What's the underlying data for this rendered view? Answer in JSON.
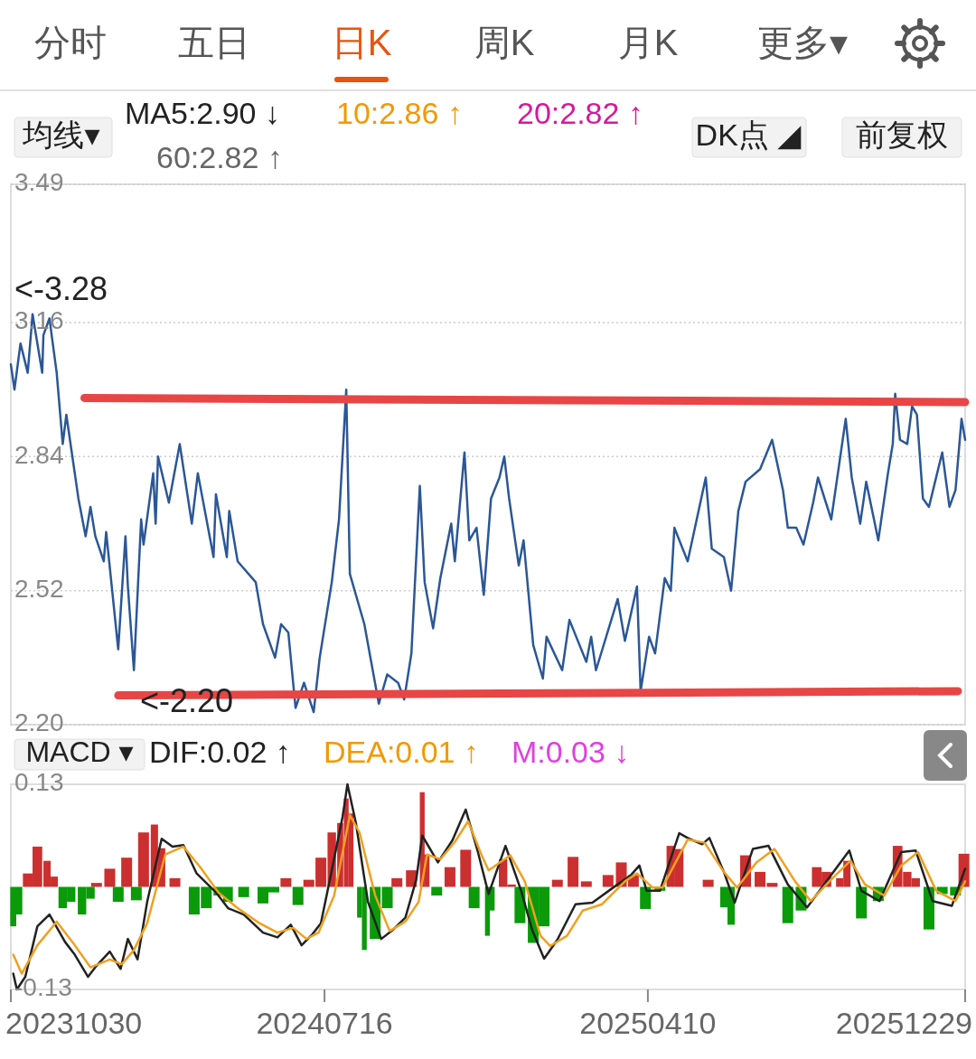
{
  "chart_data": [
    {
      "type": "line",
      "xlim": [
        "2023-10-30",
        "2025-12-29"
      ],
      "ylim": [
        2.2,
        3.49
      ],
      "yticks": [
        {
          "value": 2.2,
          "label": "2.20"
        },
        2.52,
        2.84,
        3.16,
        3.49
      ],
      "grid": "y",
      "tick_labels": "y",
      "annotations": [
        "分时",
        "五日",
        "日K",
        "周K",
        "月K",
        "更多▾",
        "均线▾",
        "MA5:2.90 ↓",
        "10:2.86 ↑",
        "20:2.82 ↑",
        "60:2.82 ↑",
        "DK点 ◢",
        "前复权",
        "<-3.28",
        "<-2.20"
      ],
      "series": [
        {
          "color": "#2b5797",
          "x": [
            "2023-10-30",
            "2023-11-02",
            "2023-11-07",
            "2023-11-13",
            "2023-11-17",
            "2023-11-25",
            "2023-11-26",
            "2023-12-01",
            "2023-12-07",
            "2023-12-12",
            "2023-12-15",
            "2023-12-25",
            "2023-12-31",
            "2024-01-04",
            "2024-01-08",
            "2024-01-15",
            "2024-01-17",
            "2024-01-22",
            "2024-01-27",
            "2024-02-02",
            "2024-02-04",
            "2024-02-09",
            "2024-02-15",
            "2024-02-17",
            "2024-02-25",
            "2024-02-27",
            "2024-02-29",
            "2024-03-09",
            "2024-03-18",
            "2024-03-28",
            "2024-04-02",
            "2024-04-15",
            "2024-04-17",
            "2024-04-26",
            "2024-04-28",
            "2024-05-05",
            "2024-05-20",
            "2024-05-26",
            "2024-06-05",
            "2024-06-10",
            "2024-06-16",
            "2024-06-22",
            "2024-06-29",
            "2024-07-07",
            "2024-07-12",
            "2024-07-22",
            "2024-07-28",
            "2024-08-03",
            "2024-08-06",
            "2024-08-18",
            "2024-08-30",
            "2024-09-06",
            "2024-09-15",
            "2024-09-20",
            "2024-09-26",
            "2024-10-03",
            "2024-10-07",
            "2024-10-14",
            "2024-10-20",
            "2024-10-29",
            "2024-11-01",
            "2024-11-09",
            "2024-11-13",
            "2024-11-19",
            "2024-11-25",
            "2024-12-01",
            "2024-12-08",
            "2024-12-12",
            "2024-12-16",
            "2024-12-24",
            "2024-12-28",
            "2025-01-05",
            "2025-01-13",
            "2025-01-16",
            "2025-01-29",
            "2025-02-04",
            "2025-02-18",
            "2025-02-22",
            "2025-02-26",
            "2025-03-16",
            "2025-03-22",
            "2025-04-01",
            "2025-04-04",
            "2025-04-11",
            "2025-04-16",
            "2025-04-24",
            "2025-04-29",
            "2025-05-02",
            "2025-05-13",
            "2025-05-28",
            "2025-06-02",
            "2025-06-12",
            "2025-06-18",
            "2025-06-24",
            "2025-06-30",
            "2025-07-12",
            "2025-07-22",
            "2025-07-31",
            "2025-08-04",
            "2025-08-11",
            "2025-08-17",
            "2025-08-25",
            "2025-08-29",
            "2025-09-09",
            "2025-09-21",
            "2025-09-26",
            "2025-10-03",
            "2025-10-08",
            "2025-10-18",
            "2025-10-26",
            "2025-10-30",
            "2025-11-01",
            "2025-11-05",
            "2025-11-11",
            "2025-11-15",
            "2025-11-19",
            "2025-11-24",
            "2025-11-29",
            "2025-12-10",
            "2025-12-16",
            "2025-12-21",
            "2025-12-26",
            "2025-12-29"
          ],
          "values": [
            3.06,
            3.0,
            3.11,
            3.04,
            3.18,
            3.04,
            3.13,
            3.17,
            3.04,
            2.87,
            2.94,
            2.74,
            2.65,
            2.72,
            2.65,
            2.59,
            2.66,
            2.52,
            2.38,
            2.65,
            2.53,
            2.33,
            2.69,
            2.63,
            2.8,
            2.68,
            2.84,
            2.73,
            2.87,
            2.68,
            2.8,
            2.6,
            2.75,
            2.6,
            2.71,
            2.59,
            2.54,
            2.44,
            2.36,
            2.44,
            2.42,
            2.24,
            2.3,
            2.23,
            2.36,
            2.54,
            2.69,
            3.0,
            2.56,
            2.44,
            2.25,
            2.32,
            2.3,
            2.26,
            2.37,
            2.77,
            2.54,
            2.43,
            2.55,
            2.68,
            2.59,
            2.85,
            2.64,
            2.67,
            2.51,
            2.74,
            2.79,
            2.84,
            2.74,
            2.58,
            2.64,
            2.39,
            2.31,
            2.41,
            2.33,
            2.45,
            2.35,
            2.41,
            2.33,
            2.5,
            2.4,
            2.53,
            2.28,
            2.41,
            2.37,
            2.55,
            2.52,
            2.67,
            2.59,
            2.79,
            2.62,
            2.6,
            2.52,
            2.71,
            2.78,
            2.81,
            2.88,
            2.76,
            2.67,
            2.67,
            2.63,
            2.73,
            2.79,
            2.69,
            2.93,
            2.79,
            2.68,
            2.78,
            2.64,
            2.8,
            2.87,
            2.99,
            2.88,
            2.87,
            2.96,
            2.94,
            2.74,
            2.72,
            2.85,
            2.72,
            2.76,
            2.93,
            2.88
          ]
        },
        {
          "color": "#e84545",
          "x": [
            "2023-12-30",
            "2025-12-29"
          ],
          "values": [
            2.98,
            2.97
          ]
        },
        {
          "color": "#e84545",
          "x": [
            "2024-01-27",
            "2025-12-23"
          ],
          "values": [
            2.27,
            2.28
          ]
        }
      ]
    },
    {
      "type": "bar",
      "xlim": [
        "2023-10-30",
        "2025-12-29"
      ],
      "xticks": [
        {
          "value": "2023-10-30",
          "label": "20231030"
        },
        {
          "value": "2024-07-16",
          "label": "20240716"
        },
        {
          "value": "2025-04-10",
          "label": "20250410"
        },
        {
          "value": "2025-12-29",
          "label": "20251229"
        }
      ],
      "ylim": [
        -0.13,
        0.13
      ],
      "yticks": [
        -0.13,
        0.13
      ],
      "annotations": [
        "MACD ▾",
        "DIF:0.02 ↑",
        "DEA:0.01 ↑",
        "M:0.03 ↓"
      ],
      "series": [
        {
          "color": "#cc2f2f",
          "x": [
            "2023-11-13",
            "2023-11-21",
            "2023-11-29",
            "2023-12-05",
            "2024-01-09",
            "2024-01-20",
            "2024-02-03",
            "2024-02-17",
            "2024-02-26",
            "2024-03-03",
            "2024-03-14",
            "2024-06-14",
            "2024-07-03",
            "2024-07-13",
            "2024-07-22",
            "2024-07-29",
            "2024-08-03",
            "2024-08-07",
            "2024-09-14",
            "2024-09-26",
            "2024-10-05",
            "2024-10-09",
            "2024-10-28",
            "2024-11-10",
            "2024-12-11",
            "2024-12-18",
            "2025-01-25",
            "2025-02-07",
            "2025-02-18",
            "2025-03-08",
            "2025-03-19",
            "2025-03-29",
            "2025-04-29",
            "2025-05-06",
            "2025-05-30",
            "2025-06-30",
            "2025-07-12",
            "2025-07-22",
            "2025-08-28",
            "2025-09-05",
            "2025-09-16",
            "2025-09-22",
            "2025-11-03",
            "2025-11-11",
            "2025-11-18",
            "2025-12-28"
          ],
          "values": [
            0.017,
            0.051,
            0.033,
            0.013,
            0.005,
            0.023,
            0.037,
            0.069,
            0.079,
            0.049,
            0.011,
            0.011,
            0.009,
            0.037,
            0.069,
            0.081,
            0.112,
            0.093,
            0.011,
            0.021,
            0.12,
            0.041,
            0.025,
            0.047,
            0.035,
            0.003,
            0.009,
            0.038,
            0.007,
            0.015,
            0.031,
            0.015,
            0.052,
            0.048,
            0.009,
            0.04,
            0.019,
            0.005,
            0.025,
            0.019,
            0.011,
            0.033,
            0.052,
            0.019,
            0.011,
            0.042
          ]
        },
        {
          "color": "#0a9a0a",
          "x": [
            "2023-11-01",
            "2023-11-06",
            "2023-12-12",
            "2023-12-19",
            "2023-12-28",
            "2024-01-04",
            "2024-01-27",
            "2024-02-11",
            "2024-03-30",
            "2024-04-09",
            "2024-04-19",
            "2024-04-27",
            "2024-05-10",
            "2024-05-26",
            "2024-06-04",
            "2024-06-24",
            "2024-08-14",
            "2024-08-18",
            "2024-08-27",
            "2024-09-06",
            "2024-10-17",
            "2024-11-17",
            "2024-11-28",
            "2024-12-02",
            "2024-12-25",
            "2025-01-05",
            "2025-01-14",
            "2025-04-08",
            "2025-04-20",
            "2025-06-12",
            "2025-06-18",
            "2025-08-04",
            "2025-08-15",
            "2025-10-04",
            "2025-10-18",
            "2025-11-29",
            "2025-12-10",
            "2025-12-21"
          ],
          "values": [
            -0.05,
            -0.035,
            -0.027,
            -0.019,
            -0.035,
            -0.015,
            -0.019,
            -0.017,
            -0.035,
            -0.027,
            -0.011,
            -0.019,
            -0.013,
            -0.021,
            -0.007,
            -0.023,
            -0.039,
            -0.08,
            -0.066,
            -0.027,
            -0.011,
            -0.027,
            -0.062,
            -0.03,
            -0.046,
            -0.071,
            -0.05,
            -0.028,
            -0.005,
            -0.026,
            -0.048,
            -0.046,
            -0.03,
            -0.04,
            -0.018,
            -0.054,
            -0.009,
            -0.011
          ]
        },
        {
          "type": "line",
          "color": "#222222",
          "x": [
            "2023-11-01",
            "2023-11-04",
            "2023-11-11",
            "2023-11-21",
            "2023-12-01",
            "2023-12-14",
            "2023-12-22",
            "2024-01-02",
            "2024-01-09",
            "2024-01-20",
            "2024-01-29",
            "2024-02-04",
            "2024-02-12",
            "2024-02-20",
            "2024-03-03",
            "2024-03-12",
            "2024-03-21",
            "2024-04-01",
            "2024-04-17",
            "2024-04-27",
            "2024-05-10",
            "2024-05-26",
            "2024-06-07",
            "2024-06-18",
            "2024-06-27",
            "2024-07-06",
            "2024-07-13",
            "2024-07-22",
            "2024-07-31",
            "2024-08-04",
            "2024-08-11",
            "2024-08-21",
            "2024-09-01",
            "2024-09-11",
            "2024-09-21",
            "2024-09-30",
            "2024-10-05",
            "2024-10-18",
            "2024-10-30",
            "2024-11-10",
            "2024-11-20",
            "2024-11-29",
            "2024-12-13",
            "2024-12-26",
            "2025-01-04",
            "2025-01-14",
            "2025-01-25",
            "2025-02-09",
            "2025-02-23",
            "2025-03-14",
            "2025-03-27",
            "2025-04-03",
            "2025-04-09",
            "2025-04-20",
            "2025-05-06",
            "2025-05-13",
            "2025-05-25",
            "2025-05-31",
            "2025-06-12",
            "2025-06-21",
            "2025-07-06",
            "2025-07-19",
            "2025-08-04",
            "2025-08-20",
            "2025-09-05",
            "2025-09-24",
            "2025-10-04",
            "2025-10-19",
            "2025-11-06",
            "2025-11-18",
            "2025-12-02",
            "2025-12-18",
            "2025-12-29"
          ],
          "values": [
            -0.11,
            -0.13,
            -0.114,
            -0.05,
            -0.035,
            -0.07,
            -0.086,
            -0.114,
            -0.1,
            -0.082,
            -0.104,
            -0.066,
            -0.092,
            -0.019,
            0.061,
            0.051,
            0.053,
            0.017,
            -0.007,
            -0.027,
            -0.035,
            -0.058,
            -0.064,
            -0.048,
            -0.074,
            -0.06,
            -0.046,
            0.021,
            0.089,
            0.13,
            0.081,
            -0.019,
            -0.066,
            -0.054,
            -0.039,
            0.009,
            0.065,
            0.031,
            0.059,
            0.098,
            0.045,
            -0.009,
            0.052,
            -0.005,
            -0.054,
            -0.091,
            -0.067,
            -0.022,
            -0.02,
            0.001,
            0.015,
            0.027,
            -0.005,
            -0.005,
            0.068,
            0.062,
            0.054,
            0.062,
            0.019,
            -0.02,
            0.048,
            0.052,
            0.003,
            -0.026,
            0.007,
            0.046,
            -0.005,
            -0.018,
            0.044,
            0.046,
            -0.018,
            -0.024,
            0.023
          ]
        },
        {
          "type": "line",
          "color": "#f0a020",
          "x": [
            "2023-11-01",
            "2023-11-08",
            "2023-11-21",
            "2023-12-07",
            "2023-12-22",
            "2024-01-04",
            "2024-01-20",
            "2024-01-30",
            "2024-02-09",
            "2024-02-20",
            "2024-03-06",
            "2024-03-21",
            "2024-04-04",
            "2024-04-19",
            "2024-05-05",
            "2024-05-23",
            "2024-06-07",
            "2024-06-20",
            "2024-07-01",
            "2024-07-11",
            "2024-07-24",
            "2024-08-06",
            "2024-08-14",
            "2024-08-27",
            "2024-09-08",
            "2024-09-21",
            "2024-10-02",
            "2024-10-09",
            "2024-10-20",
            "2024-11-01",
            "2024-11-12",
            "2024-11-23",
            "2024-11-29",
            "2024-12-17",
            "2024-12-29",
            "2025-01-11",
            "2025-01-19",
            "2025-02-02",
            "2025-02-15",
            "2025-03-03",
            "2025-03-22",
            "2025-04-01",
            "2025-04-14",
            "2025-04-22",
            "2025-05-13",
            "2025-05-27",
            "2025-06-12",
            "2025-06-23",
            "2025-07-09",
            "2025-07-24",
            "2025-08-10",
            "2025-08-23",
            "2025-09-10",
            "2025-09-25",
            "2025-10-07",
            "2025-10-23",
            "2025-11-06",
            "2025-11-20",
            "2025-12-05",
            "2025-12-21",
            "2025-12-29"
          ],
          "values": [
            -0.086,
            -0.11,
            -0.074,
            -0.044,
            -0.074,
            -0.102,
            -0.092,
            -0.098,
            -0.08,
            -0.046,
            0.041,
            0.051,
            0.025,
            -0.007,
            -0.027,
            -0.046,
            -0.058,
            -0.052,
            -0.066,
            -0.058,
            -0.011,
            0.091,
            0.069,
            -0.011,
            -0.056,
            -0.044,
            -0.019,
            0.041,
            0.035,
            0.057,
            0.083,
            0.041,
            0.021,
            0.04,
            0.007,
            -0.062,
            -0.075,
            -0.062,
            -0.03,
            -0.022,
            0.007,
            0.017,
            -0.001,
            -0.001,
            0.06,
            0.056,
            0.019,
            -0.001,
            0.031,
            0.048,
            0.007,
            -0.018,
            0.011,
            0.033,
            0.003,
            -0.011,
            0.027,
            0.044,
            -0.005,
            -0.018,
            0.007
          ]
        }
      ]
    }
  ]
}
